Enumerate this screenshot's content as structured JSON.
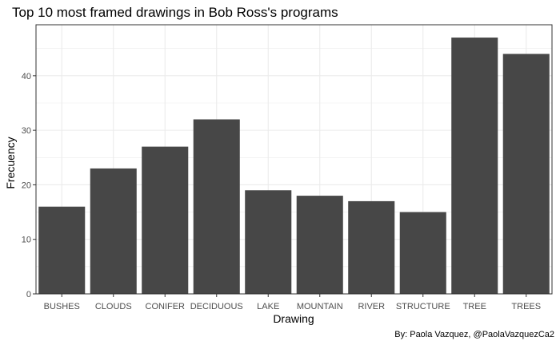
{
  "chart_data": {
    "type": "bar",
    "title": "Top 10 most framed drawings in Bob Ross's programs",
    "xlabel": "Drawing",
    "ylabel": "Frecuency",
    "caption": "By: Paola Vazquez, @PaolaVazquezCa2",
    "categories": [
      "BUSHES",
      "CLOUDS",
      "CONIFER",
      "DECIDUOUS",
      "LAKE",
      "MOUNTAIN",
      "RIVER",
      "STRUCTURE",
      "TREE",
      "TREES"
    ],
    "values": [
      16,
      23,
      27,
      32,
      19,
      18,
      17,
      15,
      47,
      44
    ],
    "ylim": [
      0,
      49.35
    ],
    "yticks": [
      0,
      10,
      20,
      30,
      40
    ],
    "grid": true,
    "bar_color": "#474747",
    "grid_color": "#ebebeb",
    "panel_border_color": "#333333"
  }
}
